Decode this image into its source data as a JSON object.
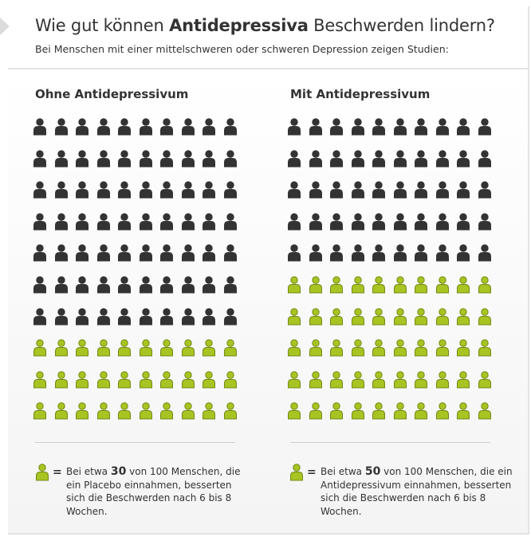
{
  "header": {
    "title_pre": "Wie gut können ",
    "title_bold": "Antidepressiva",
    "title_post": " Beschwerden lindern?",
    "subtitle": "Bei Menschen mit einer mittelschweren oder schweren Depression zeigen Studien:"
  },
  "colors": {
    "not_improved": "#333333",
    "improved": "#a8c422",
    "improved_outline": "#6f8a12"
  },
  "icons": {
    "person": "person-icon"
  },
  "panels": [
    {
      "title": "Ohne Antidepressivum",
      "total": 100,
      "improved": 30,
      "legend_pre": "Bei etwa ",
      "legend_number": "30",
      "legend_post": " von 100 Menschen, die ein Placebo einnahmen, besserten sich die Beschwerden nach 6 bis 8 Wochen."
    },
    {
      "title": "Mit Antidepressivum",
      "total": 100,
      "improved": 50,
      "legend_pre": "Bei etwa ",
      "legend_number": "50",
      "legend_post": " von 100 Menschen, die ein Antidepressivum einnahmen, besserten sich die Beschwerden nach 6 bis 8 Wochen."
    }
  ],
  "legend_equals": "="
}
